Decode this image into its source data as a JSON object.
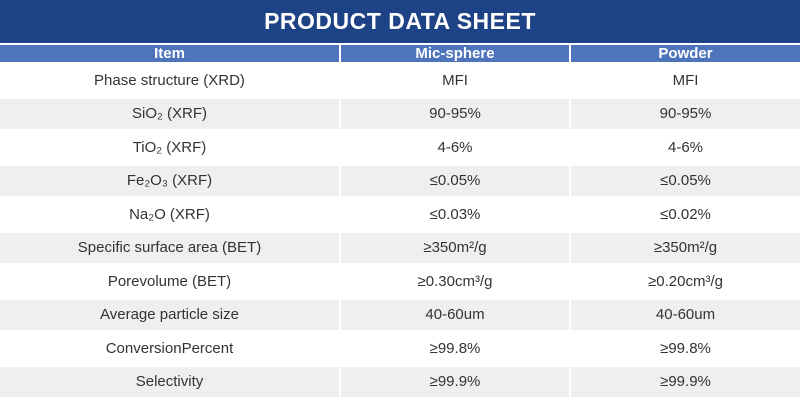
{
  "title": "PRODUCT DATA SHEET",
  "colors": {
    "title_bar": "#1E4286",
    "header_row": "#4E74BB",
    "row_alt": "#EFEFEF",
    "body_text": "#333333",
    "header_text": "#FFFFFF"
  },
  "table": {
    "columns": [
      "Item",
      "Mic-sphere",
      "Powder"
    ],
    "rows": [
      {
        "item": "Phase structure (XRD)",
        "mic_sphere": "MFI",
        "powder": "MFI"
      },
      {
        "item": "SiO₂ (XRF)",
        "mic_sphere": "90-95%",
        "powder": "90-95%"
      },
      {
        "item": "TiO₂ (XRF)",
        "mic_sphere": "4-6%",
        "powder": "4-6%"
      },
      {
        "item": "Fe₂O₃ (XRF)",
        "mic_sphere": "≤0.05%",
        "powder": "≤0.05%"
      },
      {
        "item": "Na₂O (XRF)",
        "mic_sphere": "≤0.03%",
        "powder": "≤0.02%"
      },
      {
        "item": "Specific surface area (BET)",
        "mic_sphere": "≥350m²/g",
        "powder": "≥350m²/g"
      },
      {
        "item": "Porevolume (BET)",
        "mic_sphere": "≥0.30cm³/g",
        "powder": "≥0.20cm³/g"
      },
      {
        "item": "Average particle size",
        "mic_sphere": "40-60um",
        "powder": "40-60um"
      },
      {
        "item": "ConversionPercent",
        "mic_sphere": "≥99.8%",
        "powder": "≥99.8%"
      },
      {
        "item": "Selectivity",
        "mic_sphere": "≥99.9%",
        "powder": "≥99.9%"
      }
    ]
  }
}
